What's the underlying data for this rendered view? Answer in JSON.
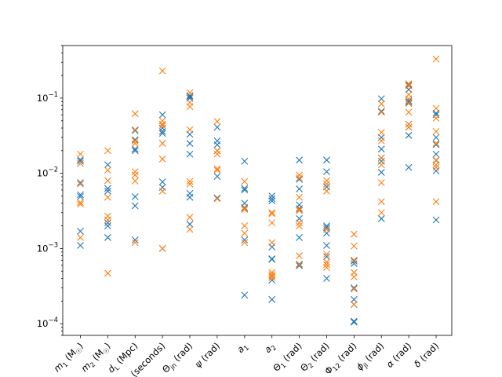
{
  "chart_data": {
    "type": "scatter",
    "marker": "x",
    "yscale": "log",
    "ylim": [
      7e-05,
      0.5
    ],
    "y_ticks": [
      {
        "value": 0.0001,
        "label": "10",
        "exp": "−4"
      },
      {
        "value": 0.001,
        "label": "10",
        "exp": "−3"
      },
      {
        "value": 0.01,
        "label": "10",
        "exp": "−2"
      },
      {
        "value": 0.1,
        "label": "10",
        "exp": "−1"
      }
    ],
    "categories": [
      "m₁ (M☉)",
      "m₂ (M☉)",
      "d_L (Mpc)",
      "t_c (seconds)",
      "Θ_jn (rad)",
      "ψ (rad)",
      "a₁",
      "a₂",
      "Θ₁ (rad)",
      "Θ₂ (rad)",
      "Φ₁₂ (rad)",
      "ϕ_jl (rad)",
      "α (rad)",
      "δ (rad)"
    ],
    "category_labels": [
      {
        "main": "m",
        "sub": "1",
        "rest": " (M",
        "sym": "☉",
        "end": ")"
      },
      {
        "main": "m",
        "sub": "2",
        "rest": " (M",
        "sym": "☉",
        "end": ")"
      },
      {
        "main": "d",
        "sub": "L",
        "rest": " (Mpc)",
        "sym": "",
        "end": ""
      },
      {
        "main": "t",
        "sub": "c",
        "rest": " (seconds)",
        "sym": "",
        "end": ""
      },
      {
        "main": "Θ",
        "sub": "jn",
        "rest": " (rad)",
        "sym": "",
        "end": ""
      },
      {
        "main": "ψ",
        "sub": "",
        "rest": " (rad)",
        "sym": "",
        "end": ""
      },
      {
        "main": "a",
        "sub": "1",
        "rest": "",
        "sym": "",
        "end": ""
      },
      {
        "main": "a",
        "sub": "2",
        "rest": "",
        "sym": "",
        "end": ""
      },
      {
        "main": "Θ",
        "sub": "1",
        "rest": " (rad)",
        "sym": "",
        "end": ""
      },
      {
        "main": "Θ",
        "sub": "2",
        "rest": " (rad)",
        "sym": "",
        "end": ""
      },
      {
        "main": "Φ",
        "sub": "12",
        "rest": " (rad)",
        "sym": "",
        "end": ""
      },
      {
        "main": "ϕ",
        "sub": "jl",
        "rest": " (rad)",
        "sym": "",
        "end": ""
      },
      {
        "main": "α",
        "sub": "",
        "rest": " (rad)",
        "sym": "",
        "end": ""
      },
      {
        "main": "δ",
        "sub": "",
        "rest": " (rad)",
        "sym": "",
        "end": ""
      }
    ],
    "series": [
      {
        "color": "#1f77b4",
        "values": [
          [
            0.0152,
            0.0145,
            0.0075,
            0.0052,
            0.0049,
            0.0017,
            0.0011
          ],
          [
            0.013,
            0.0063,
            0.0058,
            0.0022,
            0.002,
            0.0014
          ],
          [
            0.037,
            0.028,
            0.021,
            0.02,
            0.0049,
            0.0037,
            0.0013
          ],
          [
            0.06,
            0.04,
            0.036,
            0.034,
            0.0077,
            0.0065,
            0.001
          ],
          [
            0.108,
            0.104,
            0.1,
            0.033,
            0.025,
            0.018,
            0.0054,
            0.0048,
            0.0021
          ],
          [
            0.041,
            0.027,
            0.024,
            0.02,
            0.0091,
            0.0047
          ],
          [
            0.0145,
            0.0063,
            0.006,
            0.004,
            0.0035,
            0.0013,
            0.00024
          ],
          [
            0.005,
            0.0046,
            0.0043,
            0.00105,
            0.00073,
            0.00072,
            0.00038,
            0.00021
          ],
          [
            0.015,
            0.0083,
            0.0062,
            0.0038,
            0.0034,
            0.0025,
            0.0014,
            0.00062,
            0.00059
          ],
          [
            0.015,
            0.0105,
            0.0066,
            0.002,
            0.0019,
            0.0016,
            0.0011,
            0.00078,
            0.0004
          ],
          [
            0.00068,
            0.00063,
            0.0003,
            0.00021,
            0.00018,
            0.000108,
            0.000105
          ],
          [
            0.098,
            0.067,
            0.03,
            0.021,
            0.016,
            0.0145,
            0.0103,
            0.0025
          ],
          [
            0.15,
            0.13,
            0.092,
            0.088,
            0.045,
            0.041,
            0.032,
            0.012
          ],
          [
            0.063,
            0.06,
            0.03,
            0.024,
            0.018,
            0.0148,
            0.0108,
            0.0024
          ]
        ]
      },
      {
        "color": "#ff7f0e",
        "values": [
          [
            0.018,
            0.0135,
            0.0072,
            0.0041,
            0.0039,
            0.0014
          ],
          [
            0.02,
            0.011,
            0.008,
            0.0048,
            0.0027,
            0.0024,
            0.00047
          ],
          [
            0.062,
            0.038,
            0.027,
            0.025,
            0.0105,
            0.0095,
            0.0079,
            0.0012
          ],
          [
            0.23,
            0.05,
            0.045,
            0.043,
            0.025,
            0.0155,
            0.0058,
            0.001
          ],
          [
            0.118,
            0.088,
            0.077,
            0.038,
            0.0078,
            0.0072,
            0.0026,
            0.0018
          ],
          [
            0.049,
            0.02,
            0.018,
            0.0115,
            0.011,
            0.0046
          ],
          [
            0.0078,
            0.0034,
            0.0033,
            0.002,
            0.0016,
            0.0012
          ],
          [
            0.003,
            0.0029,
            0.0022,
            0.0012,
            0.00048,
            0.00045,
            0.00043,
            0.00041
          ],
          [
            0.0095,
            0.0087,
            0.0048,
            0.0033,
            0.0032,
            0.0022,
            0.002,
            0.0008,
            0.00061
          ],
          [
            0.008,
            0.0072,
            0.0058,
            0.0018,
            0.00084,
            0.00066,
            0.00061,
            0.00056
          ],
          [
            0.00155,
            0.00108,
            0.0007,
            0.00048,
            0.00042,
            0.00029,
            0.00018
          ],
          [
            0.084,
            0.065,
            0.035,
            0.027,
            0.016,
            0.013,
            0.0075,
            0.0042,
            0.003
          ],
          [
            0.155,
            0.145,
            0.112,
            0.098,
            0.085,
            0.065,
            0.045,
            0.041
          ],
          [
            0.33,
            0.073,
            0.054,
            0.036,
            0.025,
            0.015,
            0.013,
            0.012,
            0.0042
          ]
        ]
      }
    ],
    "grid": false,
    "legend": "none",
    "title": "",
    "xlabel": "",
    "ylabel": ""
  }
}
